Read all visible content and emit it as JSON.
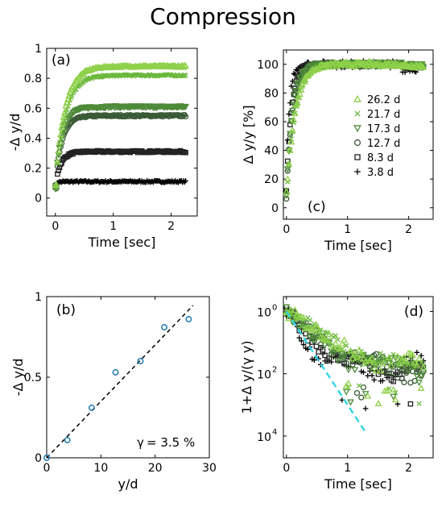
{
  "figure": {
    "title": "Compression",
    "colors": {
      "26.2 d": "#8fd14a",
      "21.7 d": "#6bb83c",
      "17.3 d": "#4e8a3a",
      "12.7 d": "#3a5a36",
      "8.3 d": "#222222",
      "3.8 d": "#000000",
      "fit_b": "#000000",
      "fit_d": "#2fd6e6",
      "points_b": "#1f77b4"
    }
  },
  "chart_data": [
    {
      "panel": "(a)",
      "type": "scatter",
      "xlabel": "Time [sec]",
      "ylabel": "-Δ y/d",
      "xlim": [
        -0.15,
        2.45
      ],
      "ylim": [
        -0.12,
        1.0
      ],
      "xticks": [
        0,
        1,
        2
      ],
      "yticks": [
        0,
        0.2,
        0.4,
        0.6,
        0.8,
        1
      ],
      "ytick_labels": [
        "0",
        "0.2",
        "0.4",
        "0.6",
        "0.8",
        "1"
      ],
      "series": [
        {
          "name": "26.2 d",
          "marker": "triangle-up",
          "plateau": 0.88,
          "tau": 0.17,
          "start": 0.1
        },
        {
          "name": "21.7 d",
          "marker": "x",
          "plateau": 0.82,
          "tau": 0.17,
          "start": 0.1
        },
        {
          "name": "17.3 d",
          "marker": "triangle-down",
          "plateau": 0.61,
          "tau": 0.12,
          "start": 0.1
        },
        {
          "name": "12.7 d",
          "marker": "circle",
          "plateau": 0.55,
          "tau": 0.12,
          "start": 0.1
        },
        {
          "name": "8.3 d",
          "marker": "square",
          "plateau": 0.31,
          "tau": 0.1,
          "start": 0.1
        },
        {
          "name": "3.8 d",
          "marker": "plus",
          "plateau": 0.11,
          "tau": 0.06,
          "start": 0.1
        }
      ]
    },
    {
      "panel": "(b)",
      "type": "scatter",
      "xlabel": "y/d",
      "ylabel": "-Δ y/d",
      "xlim": [
        0,
        30
      ],
      "ylim": [
        0,
        1
      ],
      "xticks": [
        0,
        10,
        20,
        30
      ],
      "yticks": [
        0,
        0.5,
        1
      ],
      "ytick_labels": [
        "0",
        "0.5",
        "1"
      ],
      "x": [
        0,
        3.8,
        8.3,
        12.7,
        17.3,
        21.7,
        26.2
      ],
      "y": [
        0,
        0.11,
        0.31,
        0.53,
        0.6,
        0.81,
        0.86
      ],
      "fit": {
        "slope": 0.035,
        "x": [
          0,
          27
        ]
      },
      "annotation": "= 3.5 %",
      "annotation_symbol": "γ"
    },
    {
      "panel": "(c)",
      "type": "scatter",
      "xlabel": "Time [sec]",
      "ylabel": "Δ y/y [%]",
      "xlim": [
        -0.05,
        2.4
      ],
      "ylim": [
        -8,
        110
      ],
      "xticks": [
        0,
        1,
        2
      ],
      "yticks": [
        0,
        20,
        40,
        60,
        80,
        100
      ],
      "legend_placement": "center-right",
      "legend": [
        "26.2 d",
        "21.7 d",
        "17.3 d",
        "12.7 d",
        "8.3 d",
        "3.8 d"
      ],
      "series_tau": [
        0.14,
        0.14,
        0.1,
        0.1,
        0.08,
        0.05
      ]
    },
    {
      "panel": "(d)",
      "type": "scatter",
      "xlabel": "Time [sec]",
      "ylabel": "1+Δ y/(γ y)",
      "yscale": "log",
      "xlim": [
        -0.05,
        2.4
      ],
      "ylim": [
        2e-05,
        3
      ],
      "xticks": [
        0,
        1,
        2
      ],
      "ytick_labels": [
        "10",
        "10",
        "10"
      ],
      "ytick_exponents": [
        "0",
        "2",
        "4"
      ],
      "fit": {
        "type": "exp",
        "x": [
          0,
          1.35
        ]
      }
    }
  ]
}
